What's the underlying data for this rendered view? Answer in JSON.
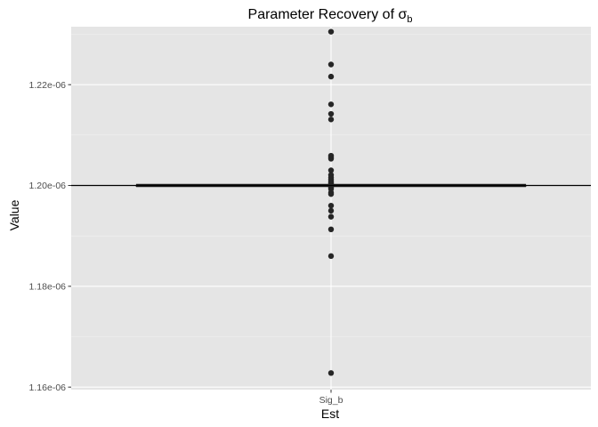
{
  "chart_data": {
    "type": "scatter",
    "title": "Parameter Recovery of σ",
    "title_subscript": "b",
    "xlabel": "Est",
    "ylabel": "Value",
    "categories": [
      "Sig_b"
    ],
    "ylim": [
      1.1595e-06,
      1.2315e-06
    ],
    "y_ticks": [
      {
        "value": 1.16e-06,
        "label": "1.16e-06"
      },
      {
        "value": 1.18e-06,
        "label": "1.18e-06"
      },
      {
        "value": 1.2e-06,
        "label": "1.20e-06"
      },
      {
        "value": 1.22e-06,
        "label": "1.22e-06"
      }
    ],
    "reference_line": 1.2e-06,
    "boxplot": {
      "q1": 1.19995e-06,
      "median": 1.2e-06,
      "q3": 1.20005e-06
    },
    "points": [
      1.2305e-06,
      1.224e-06,
      1.2216e-06,
      1.2161e-06,
      1.2142e-06,
      1.2131e-06,
      1.2059e-06,
      1.2056e-06,
      1.2053e-06,
      1.203e-06,
      1.2021e-06,
      1.2016e-06,
      1.2012e-06,
      1.2009e-06,
      1.2006e-06,
      1.2004e-06,
      1.2002e-06,
      1.2e-06,
      1.1998e-06,
      1.1996e-06,
      1.1993e-06,
      1.1986e-06,
      1.1983e-06,
      1.196e-06,
      1.195e-06,
      1.1938e-06,
      1.1913e-06,
      1.186e-06,
      1.1628e-06
    ],
    "grid": true,
    "colors": {
      "panel": "#e5e5e5",
      "grid_major": "#ffffff",
      "grid_minor": "#f2f2f2",
      "points": "#262626",
      "box": "#1a1a1a",
      "reference_line": "#000000"
    }
  }
}
